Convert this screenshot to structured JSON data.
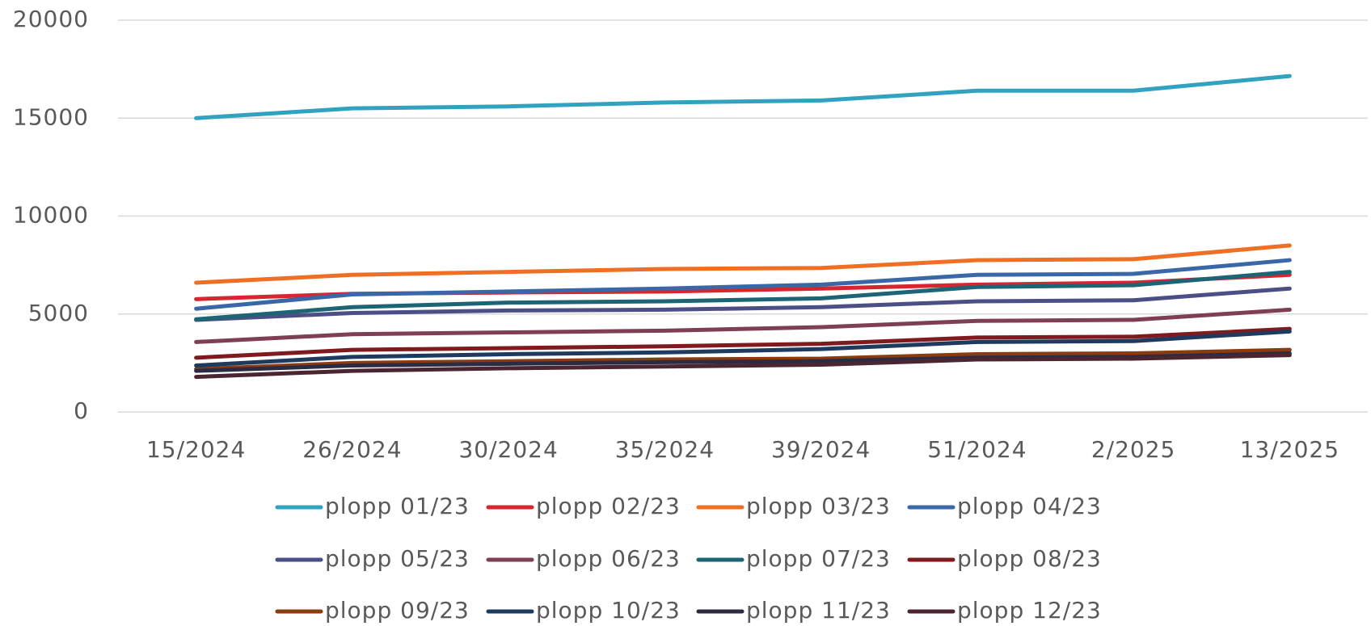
{
  "chart_data": {
    "type": "line",
    "categories": [
      "15/2024",
      "26/2024",
      "30/2024",
      "35/2024",
      "39/2024",
      "51/2024",
      "2/2025",
      "13/2025"
    ],
    "ylim": [
      0,
      20000
    ],
    "yticks": [
      0,
      5000,
      10000,
      15000,
      20000
    ],
    "grid": true,
    "legend": "bottom",
    "series": [
      {
        "name": "plopp 01/23",
        "color": "#31a3c1",
        "values": [
          15000,
          15500,
          15600,
          15800,
          15900,
          16400,
          16400,
          17150
        ]
      },
      {
        "name": "plopp 02/23",
        "color": "#d7262f",
        "values": [
          5760,
          6030,
          6100,
          6150,
          6300,
          6500,
          6600,
          7000
        ]
      },
      {
        "name": "plopp 03/23",
        "color": "#ef6f24",
        "values": [
          6600,
          7000,
          7150,
          7300,
          7350,
          7750,
          7800,
          8500
        ]
      },
      {
        "name": "plopp 04/23",
        "color": "#3a67a8",
        "values": [
          5270,
          6000,
          6150,
          6300,
          6500,
          7000,
          7050,
          7750
        ]
      },
      {
        "name": "plopp 05/23",
        "color": "#4c4f86",
        "values": [
          4700,
          5050,
          5180,
          5220,
          5350,
          5650,
          5700,
          6300
        ]
      },
      {
        "name": "plopp 06/23",
        "color": "#7e3f52",
        "values": [
          3570,
          3970,
          4060,
          4150,
          4330,
          4650,
          4700,
          5220
        ]
      },
      {
        "name": "plopp 07/23",
        "color": "#1d6474",
        "values": [
          4730,
          5350,
          5580,
          5650,
          5800,
          6380,
          6470,
          7150
        ]
      },
      {
        "name": "plopp 08/23",
        "color": "#7f1a1e",
        "values": [
          2770,
          3170,
          3260,
          3350,
          3480,
          3800,
          3840,
          4240
        ]
      },
      {
        "name": "plopp 09/23",
        "color": "#8a3b10",
        "values": [
          2190,
          2500,
          2590,
          2680,
          2720,
          2950,
          2990,
          3170
        ]
      },
      {
        "name": "plopp 10/23",
        "color": "#1e3a5f",
        "values": [
          2370,
          2810,
          2950,
          3040,
          3210,
          3570,
          3620,
          4110
        ]
      },
      {
        "name": "plopp 11/23",
        "color": "#2c2b44",
        "values": [
          2100,
          2370,
          2460,
          2540,
          2590,
          2770,
          2810,
          2990
        ]
      },
      {
        "name": "plopp 12/23",
        "color": "#4b2630",
        "values": [
          1790,
          2100,
          2230,
          2320,
          2410,
          2680,
          2720,
          2900
        ]
      }
    ]
  }
}
